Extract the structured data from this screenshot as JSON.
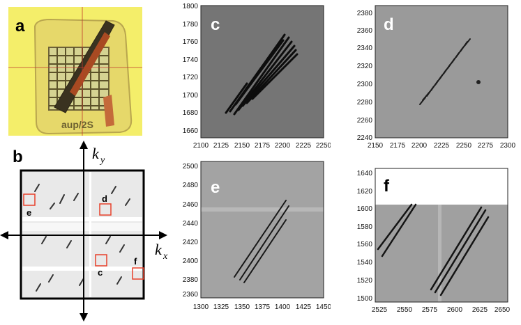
{
  "panels": {
    "a": {
      "label": "a",
      "stamp_text": "aup/2S"
    },
    "b": {
      "label": "b",
      "ky": "k",
      "ky_sub": "y",
      "kx": "k",
      "kx_sub": "x",
      "box_labels": [
        "e",
        "d",
        "c",
        "f"
      ]
    },
    "c": {
      "label": "c",
      "x_ticks": [
        "2100",
        "2125",
        "2150",
        "2175",
        "2200",
        "2225",
        "2250"
      ],
      "y_ticks": [
        "1800",
        "1780",
        "1760",
        "1740",
        "1720",
        "1700",
        "1680",
        "1660"
      ]
    },
    "d": {
      "label": "d",
      "x_ticks": [
        "2150",
        "2175",
        "2200",
        "2225",
        "2250",
        "2275",
        "2300"
      ],
      "y_ticks": [
        "2380",
        "2360",
        "2340",
        "2320",
        "2300",
        "2280",
        "2260",
        "2240"
      ]
    },
    "e": {
      "label": "e",
      "x_ticks": [
        "1300",
        "1325",
        "1350",
        "1375",
        "1400",
        "1425",
        "1450"
      ],
      "y_ticks": [
        "2500",
        "2480",
        "2460",
        "2440",
        "2420",
        "2400",
        "2380",
        "2360"
      ]
    },
    "f": {
      "label": "f",
      "x_ticks": [
        "2525",
        "2550",
        "2575",
        "2600",
        "2625",
        "2650"
      ],
      "y_ticks": [
        "1640",
        "1620",
        "1600",
        "1580",
        "1560",
        "1540",
        "1520",
        "1500"
      ]
    }
  },
  "colors": {
    "highlight_box": "#e8402a",
    "yellow_bg": "#f4ee6a",
    "detector_gray": "#8c8c8c"
  }
}
